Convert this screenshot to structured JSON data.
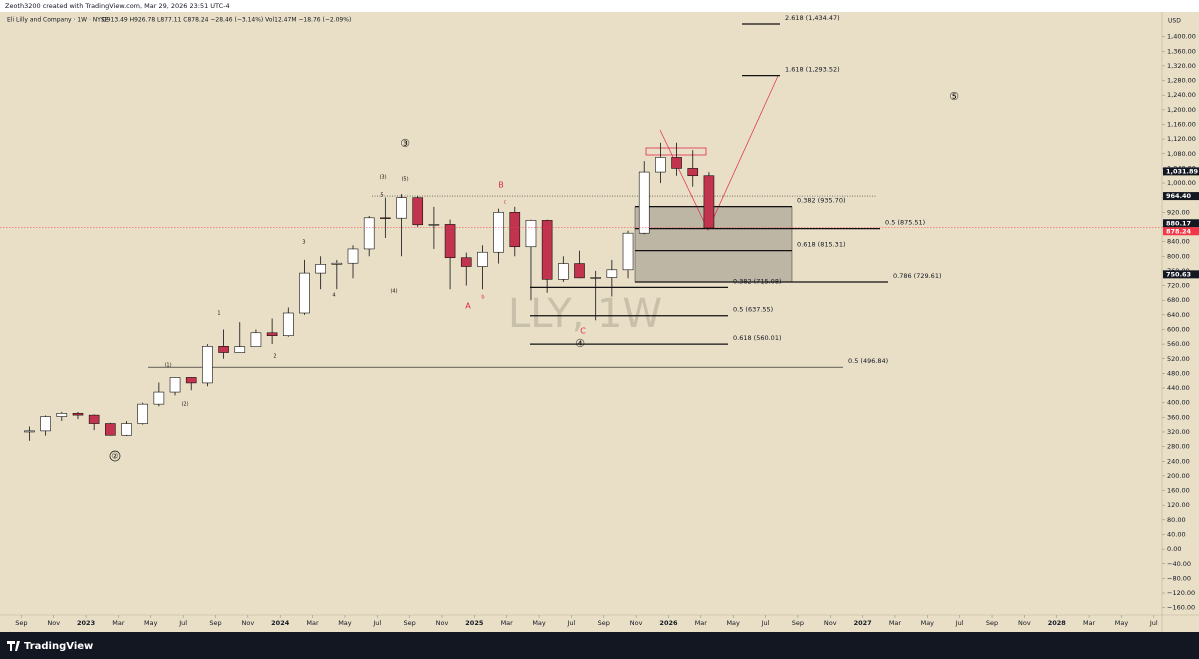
{
  "header": "Zeoth3200 created with TradingView.com, Mar 29, 2026 23:51 UTC-4",
  "footer": "TradingView",
  "chart_data": {
    "type": "candlestick",
    "title": "Eli Lilly and Company · 1W · NYSE",
    "ohlc_text": "O913.49 H926.78 L877.11 C878.24 −28.46 (−3.14%) Vol12.47M −18.76 (−2.09%)",
    "watermark": "LLY, 1W",
    "currency": "USD",
    "up_color": "#ffffff",
    "down_color": "#c2334d",
    "wick_color": "#111111",
    "x": [
      "2022-09",
      "2022-10",
      "2022-11",
      "2022-12",
      "2023-01",
      "2023-02",
      "2023-03",
      "2023-04",
      "2023-05",
      "2023-06",
      "2023-07",
      "2023-08",
      "2023-09",
      "2023-10",
      "2023-11",
      "2023-12",
      "2024-01",
      "2024-02",
      "2024-03",
      "2024-04",
      "2024-05",
      "2024-06",
      "2024-07",
      "2024-08",
      "2024-09",
      "2024-10",
      "2024-11",
      "2024-12",
      "2025-01",
      "2025-02",
      "2025-03",
      "2025-04",
      "2025-05",
      "2025-06",
      "2025-07",
      "2025-08",
      "2025-09",
      "2025-10",
      "2025-11",
      "2025-12",
      "2026-01",
      "2026-02",
      "2026-03"
    ],
    "open": [
      320,
      323,
      362,
      371,
      366,
      343,
      311,
      343,
      396,
      429,
      469,
      454,
      554,
      537,
      553,
      591,
      583,
      645,
      754,
      778,
      781,
      820,
      905,
      904,
      960,
      886,
      887,
      796,
      772,
      811,
      920,
      826,
      898,
      737,
      780,
      741,
      742,
      763,
      863,
      1030,
      1070,
      1040,
      1020
    ],
    "high": [
      335,
      365,
      375,
      375,
      368,
      345,
      350,
      400,
      455,
      470,
      470,
      560,
      600,
      620,
      600,
      630,
      660,
      790,
      800,
      790,
      830,
      910,
      960,
      970,
      965,
      935,
      900,
      810,
      830,
      930,
      935,
      900,
      900,
      800,
      815,
      760,
      790,
      870,
      1060,
      1110,
      1110,
      1090,
      1030
    ],
    "low": [
      296,
      310,
      350,
      355,
      325,
      310,
      309,
      340,
      390,
      420,
      434,
      445,
      520,
      540,
      555,
      560,
      580,
      640,
      710,
      710,
      740,
      800,
      850,
      800,
      880,
      820,
      710,
      720,
      710,
      780,
      800,
      680,
      700,
      730,
      740,
      625,
      690,
      740,
      860,
      1000,
      1020,
      990,
      877
    ],
    "close": [
      323,
      362,
      371,
      366,
      343,
      311,
      343,
      396,
      429,
      469,
      454,
      554,
      537,
      553,
      591,
      583,
      645,
      754,
      778,
      781,
      820,
      905,
      904,
      960,
      886,
      887,
      796,
      772,
      811,
      920,
      826,
      898,
      737,
      780,
      741,
      742,
      763,
      863,
      1030,
      1070,
      1040,
      1020,
      878.24
    ],
    "xlim": [
      "2022-07",
      "2028-08"
    ],
    "xticks": [
      {
        "value": "2022-09",
        "label": "Sep"
      },
      {
        "value": "2022-11",
        "label": "Nov"
      },
      {
        "value": "2023-01",
        "label": "2023"
      },
      {
        "value": "2023-03",
        "label": "Mar"
      },
      {
        "value": "2023-05",
        "label": "May"
      },
      {
        "value": "2023-07",
        "label": "Jul"
      },
      {
        "value": "2023-09",
        "label": "Sep"
      },
      {
        "value": "2023-11",
        "label": "Nov"
      },
      {
        "value": "2024-01",
        "label": "2024"
      },
      {
        "value": "2024-03",
        "label": "Mar"
      },
      {
        "value": "2024-05",
        "label": "May"
      },
      {
        "value": "2024-07",
        "label": "Jul"
      },
      {
        "value": "2024-09",
        "label": "Sep"
      },
      {
        "value": "2024-11",
        "label": "Nov"
      },
      {
        "value": "2025-01",
        "label": "2025"
      },
      {
        "value": "2025-03",
        "label": "Mar"
      },
      {
        "value": "2025-05",
        "label": "May"
      },
      {
        "value": "2025-07",
        "label": "Jul"
      },
      {
        "value": "2025-09",
        "label": "Sep"
      },
      {
        "value": "2025-11",
        "label": "Nov"
      },
      {
        "value": "2026-01",
        "label": "2026"
      },
      {
        "value": "2026-03",
        "label": "Mar"
      },
      {
        "value": "2026-05",
        "label": "May"
      },
      {
        "value": "2026-07",
        "label": "Jul"
      },
      {
        "value": "2026-09",
        "label": "Sep"
      },
      {
        "value": "2026-11",
        "label": "Nov"
      },
      {
        "value": "2027-01",
        "label": "2027"
      },
      {
        "value": "2027-03",
        "label": "Mar"
      },
      {
        "value": "2027-05",
        "label": "May"
      },
      {
        "value": "2027-07",
        "label": "Jul"
      },
      {
        "value": "2027-09",
        "label": "Sep"
      },
      {
        "value": "2027-11",
        "label": "Nov"
      },
      {
        "value": "2028-01",
        "label": "2028"
      },
      {
        "value": "2028-03",
        "label": "Mar"
      },
      {
        "value": "2028-05",
        "label": "May"
      },
      {
        "value": "2028-07",
        "label": "Jul"
      }
    ],
    "ylim": [
      -180,
      1470
    ],
    "yticks": [
      {
        "value": 1400,
        "label": "1,400.00"
      },
      {
        "value": 1360,
        "label": "1,360.00"
      },
      {
        "value": 1320,
        "label": "1,320.00"
      },
      {
        "value": 1280,
        "label": "1,280.00"
      },
      {
        "value": 1240,
        "label": "1,240.00"
      },
      {
        "value": 1200,
        "label": "1,200.00"
      },
      {
        "value": 1160,
        "label": "1,160.00"
      },
      {
        "value": 1120,
        "label": "1,120.00"
      },
      {
        "value": 1080,
        "label": "1,080.00"
      },
      {
        "value": 1040,
        "label": "1,040.00"
      },
      {
        "value": 1000,
        "label": "1,000.00"
      },
      {
        "value": 960,
        "label": "960.00"
      },
      {
        "value": 920,
        "label": "920.00"
      },
      {
        "value": 880,
        "label": "880.00"
      },
      {
        "value": 840,
        "label": "840.00"
      },
      {
        "value": 800,
        "label": "800.00"
      },
      {
        "value": 760,
        "label": "760.00"
      },
      {
        "value": 720,
        "label": "720.00"
      },
      {
        "value": 680,
        "label": "680.00"
      },
      {
        "value": 640,
        "label": "640.00"
      },
      {
        "value": 600,
        "label": "600.00"
      },
      {
        "value": 560,
        "label": "560.00"
      },
      {
        "value": 520,
        "label": "520.00"
      },
      {
        "value": 480,
        "label": "480.00"
      },
      {
        "value": 440,
        "label": "440.00"
      },
      {
        "value": 400,
        "label": "400.00"
      },
      {
        "value": 360,
        "label": "360.00"
      },
      {
        "value": 320,
        "label": "320.00"
      },
      {
        "value": 280,
        "label": "280.00"
      },
      {
        "value": 240,
        "label": "240.00"
      },
      {
        "value": 200,
        "label": "200.00"
      },
      {
        "value": 160,
        "label": "160.00"
      },
      {
        "value": 120,
        "label": "120.00"
      },
      {
        "value": 80,
        "label": "80.00"
      },
      {
        "value": 40,
        "label": "40.00"
      },
      {
        "value": 0,
        "label": "0.00"
      },
      {
        "value": -40,
        "label": "−40.00"
      },
      {
        "value": -80,
        "label": "−80.00"
      },
      {
        "value": -120,
        "label": "−120.00"
      },
      {
        "value": -160,
        "label": "−160.00"
      }
    ],
    "price_markers": [
      {
        "value": 1031.89,
        "label": "1,031.89",
        "color": "#131722"
      },
      {
        "value": 964.4,
        "label": "964.40",
        "color": "#131722"
      },
      {
        "value": 880.17,
        "label": "880.17",
        "color": "#131722"
      },
      {
        "value": 878.24,
        "label": "878.24",
        "color": "#f23645"
      },
      {
        "value": 750.63,
        "label": "750.63",
        "color": "#131722"
      }
    ],
    "fibs": [
      {
        "value": 1434.47,
        "label": "2.618 (1,434.47)"
      },
      {
        "value": 1293.52,
        "label": "1.618 (1,293.52)"
      },
      {
        "value": 935.7,
        "label": "0.382 (935.70)"
      },
      {
        "value": 875.51,
        "label": "0.5 (875.51)"
      },
      {
        "value": 815.31,
        "label": "0.618 (815.31)"
      },
      {
        "value": 729.61,
        "label": "0.786 (729.61)"
      },
      {
        "value": 715.08,
        "label": "0.382 (715.08)"
      },
      {
        "value": 637.55,
        "label": "0.5 (637.55)"
      },
      {
        "value": 560.01,
        "label": "0.618 (560.01)"
      },
      {
        "value": 496.84,
        "label": "0.5 (496.84)"
      }
    ],
    "annotations": [
      "②",
      "③",
      "④",
      "⑤",
      "(1)",
      "(2)",
      "1",
      "2",
      "3",
      "4",
      "5",
      "(3)",
      "(4)",
      "(5)",
      "A",
      "B",
      "C",
      "a",
      "b",
      "c"
    ]
  }
}
